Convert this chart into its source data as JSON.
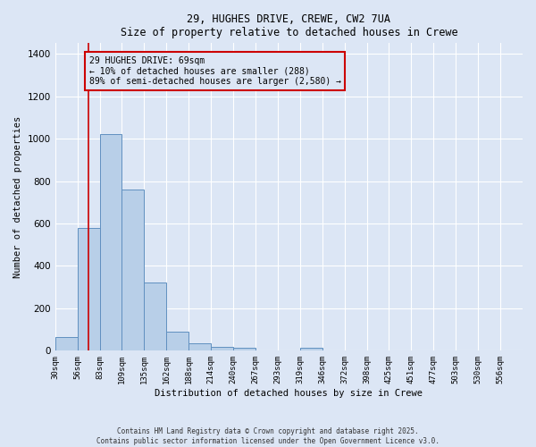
{
  "title_line1": "29, HUGHES DRIVE, CREWE, CW2 7UA",
  "title_line2": "Size of property relative to detached houses in Crewe",
  "xlabel": "Distribution of detached houses by size in Crewe",
  "ylabel": "Number of detached properties",
  "bin_labels": [
    "30sqm",
    "56sqm",
    "83sqm",
    "109sqm",
    "135sqm",
    "162sqm",
    "188sqm",
    "214sqm",
    "240sqm",
    "267sqm",
    "293sqm",
    "319sqm",
    "346sqm",
    "372sqm",
    "398sqm",
    "425sqm",
    "451sqm",
    "477sqm",
    "503sqm",
    "530sqm",
    "556sqm"
  ],
  "bar_heights": [
    65,
    580,
    1020,
    760,
    320,
    90,
    35,
    20,
    12,
    0,
    0,
    15,
    0,
    0,
    0,
    0,
    0,
    0,
    0,
    0,
    0
  ],
  "bar_color": "#b8cfe8",
  "bar_edge_color": "#6090c0",
  "vline_x": 1.5,
  "vline_color": "#cc0000",
  "annotation_text": "29 HUGHES DRIVE: 69sqm\n← 10% of detached houses are smaller (288)\n89% of semi-detached houses are larger (2,580) →",
  "ylim": [
    0,
    1450
  ],
  "background_color": "#dce6f5",
  "grid_color": "#ffffff",
  "footer_line1": "Contains HM Land Registry data © Crown copyright and database right 2025.",
  "footer_line2": "Contains public sector information licensed under the Open Government Licence v3.0."
}
